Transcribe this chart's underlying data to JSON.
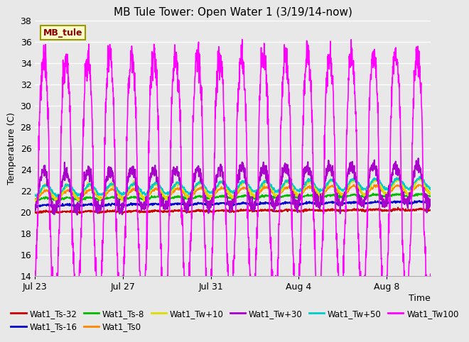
{
  "title": "MB Tule Tower: Open Water 1 (3/19/14-now)",
  "ylabel": "Temperature (C)",
  "xlabel": "Time",
  "ylim": [
    14,
    38
  ],
  "yticks": [
    14,
    16,
    18,
    20,
    22,
    24,
    26,
    28,
    30,
    32,
    34,
    36,
    38
  ],
  "xtick_labels": [
    "Jul 23",
    "Jul 27",
    "Jul 31",
    "Aug 4",
    "Aug 8"
  ],
  "xtick_positions": [
    0,
    4,
    8,
    12,
    16
  ],
  "xlim": [
    0,
    18
  ],
  "bg_color": "#e8e8e8",
  "plot_bg_color": "#e8e8e8",
  "grid_color": "#ffffff",
  "series": [
    {
      "label": "Wat1_Ts-32",
      "color": "#cc0000",
      "base": 20.0,
      "amp": 0.05,
      "trend": 0.012
    },
    {
      "label": "Wat1_Ts-16",
      "color": "#0000cc",
      "base": 20.6,
      "amp": 0.06,
      "trend": 0.018
    },
    {
      "label": "Wat1_Ts-8",
      "color": "#00bb00",
      "base": 21.2,
      "amp": 0.1,
      "trend": 0.022
    },
    {
      "label": "Wat1_Ts0",
      "color": "#ff8800",
      "base": 21.6,
      "amp": 0.4,
      "trend": 0.03
    },
    {
      "label": "Wat1_Tw+10",
      "color": "#dddd00",
      "base": 21.8,
      "amp": 0.7,
      "trend": 0.035
    },
    {
      "label": "Wat1_Tw+30",
      "color": "#aa00cc",
      "base": 21.5,
      "amp": 2.2,
      "trend": 0.04
    },
    {
      "label": "Wat1_Tw+50",
      "color": "#00cccc",
      "base": 22.0,
      "amp": 0.5,
      "trend": 0.04
    },
    {
      "label": "Wat1_Tw100",
      "color": "#ff00ff",
      "base": 21.5,
      "amp_up": 13.0,
      "amp_down": 5.5,
      "trend": 0.02
    }
  ],
  "annotation_label": "MB_tule",
  "title_fontsize": 11,
  "tick_fontsize": 9,
  "legend_fontsize": 8.5
}
